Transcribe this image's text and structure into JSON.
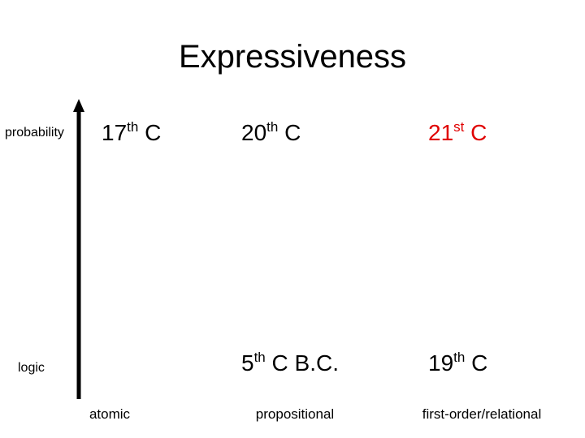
{
  "title": "Expressiveness",
  "y_axis": {
    "labels": [
      "probability",
      "logic"
    ]
  },
  "x_axis": {
    "labels": [
      "atomic",
      "propositional",
      "first-order/relational"
    ]
  },
  "cells": [
    {
      "base": "17",
      "sup": "th",
      "rest": " C",
      "color": "#000000"
    },
    {
      "base": "20",
      "sup": "th",
      "rest": " C",
      "color": "#000000"
    },
    {
      "base": "21",
      "sup": "st",
      "rest": " C",
      "color": "#e00000"
    },
    {
      "base": "5",
      "sup": "th",
      "rest": " C B.C.",
      "color": "#000000"
    },
    {
      "base": "19",
      "sup": "th",
      "rest": " C",
      "color": "#000000"
    }
  ]
}
